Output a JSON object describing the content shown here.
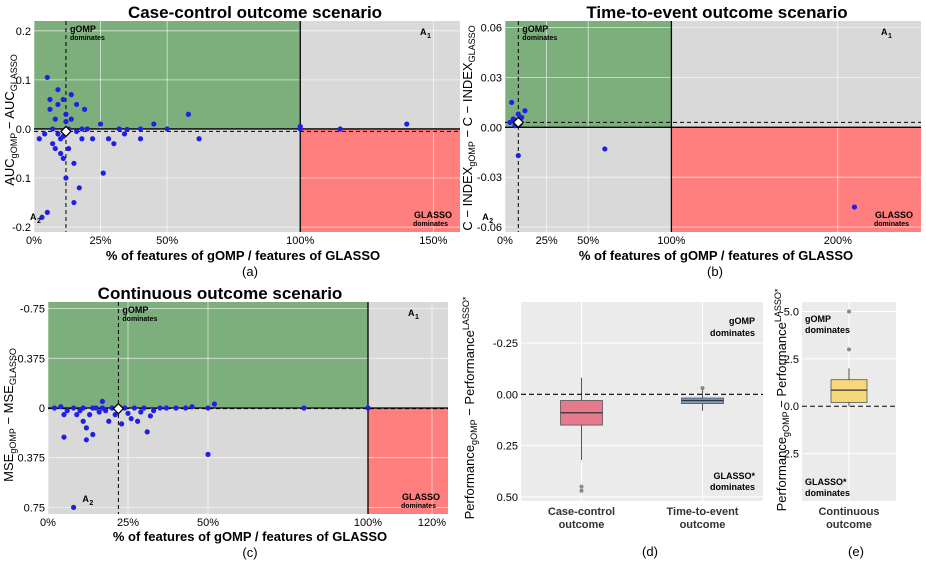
{
  "colors": {
    "green_region": "#7daf7d",
    "red_region": "#ff7f7f",
    "grey_region": "#d9d9d9",
    "point": "#1f1fe6",
    "box_case": "#e57a8c",
    "box_tte": "#7a9bc9",
    "box_cont": "#f4d87a"
  },
  "chart_data": [
    {
      "id": "a",
      "type": "scatter",
      "title": "Case-control outcome scenario",
      "xlabel": "% of features of gOMP / features of GLASSO",
      "ylabel_parts": {
        "lead": "AUC",
        "sub1": "gOMP",
        "mid": " − AUC",
        "sub2": "GLASSO"
      },
      "panel_label": "(a)",
      "xlim": [
        0,
        1.6
      ],
      "ylim": [
        -0.21,
        0.22
      ],
      "y_inverted": false,
      "xticks": [
        {
          "v": 0,
          "label": "0%"
        },
        {
          "v": 0.25,
          "label": "25%"
        },
        {
          "v": 0.5,
          "label": "50%"
        },
        {
          "v": 1.0,
          "label": "100%"
        },
        {
          "v": 1.5,
          "label": "150%"
        }
      ],
      "yticks": [
        {
          "v": 0.2,
          "label": "0.2"
        },
        {
          "v": 0.1,
          "label": "0.1"
        },
        {
          "v": 0.0,
          "label": "0.0"
        },
        {
          "v": -0.1,
          "label": "-0.1"
        },
        {
          "v": -0.2,
          "label": "-0.2"
        }
      ],
      "median_x": 0.12,
      "median_y": -0.005,
      "regions": {
        "a1": "A",
        "a1_sub": "1",
        "a2": "A",
        "a2_sub": "2",
        "gomp": "gOMP",
        "gomp_sub": "dominates",
        "glasso": "GLASSO",
        "glasso_sub": "dominates"
      },
      "points": [
        [
          0.03,
          -0.18
        ],
        [
          0.05,
          -0.17
        ],
        [
          0.05,
          0.105
        ],
        [
          0.06,
          0.06
        ],
        [
          0.06,
          0.04
        ],
        [
          0.07,
          0.0
        ],
        [
          0.07,
          -0.03
        ],
        [
          0.08,
          0.02
        ],
        [
          0.09,
          0.08
        ],
        [
          0.09,
          0.05
        ],
        [
          0.09,
          -0.01
        ],
        [
          0.1,
          -0.02
        ],
        [
          0.1,
          -0.05
        ],
        [
          0.11,
          0.06
        ],
        [
          0.11,
          -0.06
        ],
        [
          0.12,
          0.03
        ],
        [
          0.12,
          -0.1
        ],
        [
          0.13,
          0.0
        ],
        [
          0.13,
          -0.04
        ],
        [
          0.14,
          0.07
        ],
        [
          0.14,
          0.02
        ],
        [
          0.15,
          -0.07
        ],
        [
          0.15,
          -0.15
        ],
        [
          0.16,
          0.05
        ],
        [
          0.17,
          -0.12
        ],
        [
          0.18,
          -0.02
        ],
        [
          0.19,
          0.04
        ],
        [
          0.2,
          0.0
        ],
        [
          0.22,
          -0.02
        ],
        [
          0.25,
          0.01
        ],
        [
          0.26,
          -0.09
        ],
        [
          0.28,
          -0.02
        ],
        [
          0.3,
          -0.03
        ],
        [
          0.32,
          0.0
        ],
        [
          0.34,
          -0.01
        ],
        [
          0.35,
          -0.001
        ],
        [
          0.4,
          -0.02
        ],
        [
          0.4,
          0.0
        ],
        [
          0.45,
          0.01
        ],
        [
          0.5,
          0.0
        ],
        [
          0.58,
          0.03
        ],
        [
          0.62,
          -0.02
        ],
        [
          1.0,
          0.005
        ],
        [
          1.0,
          0.0
        ],
        [
          1.15,
          0.0
        ],
        [
          1.4,
          0.01
        ],
        [
          0.02,
          -0.02
        ],
        [
          0.04,
          -0.01
        ],
        [
          0.08,
          -0.04
        ],
        [
          0.12,
          0.015
        ],
        [
          0.16,
          -0.005
        ],
        [
          0.18,
          0.0
        ],
        [
          0.11,
          -0.015
        ]
      ]
    },
    {
      "id": "b",
      "type": "scatter",
      "title": "Time-to-event outcome scenario",
      "xlabel": "% of features of gOMP / features of GLASSO",
      "ylabel_parts": {
        "lead": "C − INDEX",
        "sub1": "gOMP",
        "mid": " − C − INDEX",
        "sub2": "GLASSO"
      },
      "panel_label": "(b)",
      "xlim": [
        0,
        2.5
      ],
      "ylim": [
        -0.063,
        0.064
      ],
      "y_inverted": false,
      "xticks": [
        {
          "v": 0,
          "label": "0%"
        },
        {
          "v": 0.25,
          "label": "25%"
        },
        {
          "v": 0.5,
          "label": "50%"
        },
        {
          "v": 1.0,
          "label": "100%"
        },
        {
          "v": 2.0,
          "label": "200%"
        }
      ],
      "yticks": [
        {
          "v": 0.06,
          "label": "0.06"
        },
        {
          "v": 0.03,
          "label": "0.03"
        },
        {
          "v": 0.0,
          "label": "0.00"
        },
        {
          "v": -0.03,
          "label": "-0.03"
        },
        {
          "v": -0.06,
          "label": "-0.06"
        }
      ],
      "median_x": 0.08,
      "median_y": 0.003,
      "regions": {
        "a1": "A",
        "a1_sub": "1",
        "a2": "A",
        "a2_sub": "2",
        "gomp": "gOMP",
        "gomp_sub": "dominates",
        "glasso": "GLASSO",
        "glasso_sub": "dominates"
      },
      "points": [
        [
          0.04,
          0.015
        ],
        [
          0.05,
          0.005
        ],
        [
          0.06,
          0.003
        ],
        [
          0.07,
          0.004
        ],
        [
          0.08,
          0.008
        ],
        [
          0.09,
          0.002
        ],
        [
          0.1,
          0.006
        ],
        [
          0.12,
          0.01
        ],
        [
          0.08,
          -0.017
        ],
        [
          0.03,
          0.003
        ],
        [
          0.06,
          0.001
        ],
        [
          0.6,
          -0.013
        ],
        [
          2.1,
          -0.048
        ],
        [
          0.09,
          0.003
        ]
      ]
    },
    {
      "id": "c",
      "type": "scatter",
      "title": "Continuous outcome scenario",
      "xlabel": "% of features of gOMP / features of GLASSO",
      "ylabel_parts": {
        "lead": "MSE",
        "sub1": "gOMP",
        "mid": " − MSE",
        "sub2": "GLASSO"
      },
      "panel_label": "(c)",
      "xlim": [
        0,
        1.25
      ],
      "ylim": [
        -0.8,
        0.8
      ],
      "y_inverted": true,
      "xticks": [
        {
          "v": 0,
          "label": "0%"
        },
        {
          "v": 0.25,
          "label": "25%"
        },
        {
          "v": 0.5,
          "label": "50%"
        },
        {
          "v": 1.0,
          "label": "100%"
        },
        {
          "v": 1.2,
          "label": "120%"
        }
      ],
      "yticks": [
        {
          "v": -0.75,
          "label": "-0.75"
        },
        {
          "v": -0.375,
          "label": "-0.375"
        },
        {
          "v": 0.0,
          "label": "0"
        },
        {
          "v": 0.375,
          "label": "0.375"
        },
        {
          "v": 0.75,
          "label": "0.75"
        }
      ],
      "median_x": 0.22,
      "median_y": 0.005,
      "regions": {
        "a1": "A",
        "a1_sub": "1",
        "a2": "A",
        "a2_sub": "2",
        "gomp": "gOMP",
        "gomp_sub": "dominates",
        "glasso": "GLASSO",
        "glasso_sub": "dominates"
      },
      "points": [
        [
          0.02,
          0.0
        ],
        [
          0.04,
          -0.01
        ],
        [
          0.05,
          0.05
        ],
        [
          0.05,
          0.22
        ],
        [
          0.06,
          0.02
        ],
        [
          0.08,
          0.0
        ],
        [
          0.08,
          0.75
        ],
        [
          0.09,
          0.05
        ],
        [
          0.1,
          0.02
        ],
        [
          0.11,
          0.0
        ],
        [
          0.11,
          0.1
        ],
        [
          0.12,
          0.15
        ],
        [
          0.12,
          0.24
        ],
        [
          0.13,
          0.05
        ],
        [
          0.14,
          0.2
        ],
        [
          0.15,
          0.0
        ],
        [
          0.16,
          0.03
        ],
        [
          0.17,
          -0.05
        ],
        [
          0.18,
          0.02
        ],
        [
          0.19,
          0.1
        ],
        [
          0.2,
          0.0
        ],
        [
          0.21,
          0.05
        ],
        [
          0.23,
          0.12
        ],
        [
          0.24,
          0.0
        ],
        [
          0.25,
          0.04
        ],
        [
          0.26,
          0.08
        ],
        [
          0.27,
          0.0
        ],
        [
          0.28,
          0.1
        ],
        [
          0.29,
          0.03
        ],
        [
          0.3,
          0.0
        ],
        [
          0.31,
          0.18
        ],
        [
          0.32,
          0.06
        ],
        [
          0.33,
          0.02
        ],
        [
          0.35,
          0.0
        ],
        [
          0.37,
          0.0
        ],
        [
          0.4,
          0.0
        ],
        [
          0.43,
          0.0
        ],
        [
          0.45,
          -0.01
        ],
        [
          0.5,
          0.0
        ],
        [
          0.5,
          0.35
        ],
        [
          0.52,
          -0.03
        ],
        [
          0.8,
          0.0
        ],
        [
          1.0,
          0.0
        ],
        [
          0.14,
          0.0
        ],
        [
          0.17,
          0.0
        ]
      ]
    },
    {
      "id": "d",
      "type": "box",
      "ylabel_parts": {
        "lead": "Performance",
        "sub1": "gOMP",
        "mid": " − Performance",
        "sub2": "LASSO*"
      },
      "panel_label": "(d)",
      "ylim": [
        -0.45,
        0.52
      ],
      "y_inverted": true,
      "yticks": [
        {
          "v": -0.25,
          "label": "-0.25"
        },
        {
          "v": 0.0,
          "label": "0.00"
        },
        {
          "v": 0.25,
          "label": "0.25"
        },
        {
          "v": 0.5,
          "label": "0.50"
        }
      ],
      "annot_top": [
        "gOMP",
        "dominates"
      ],
      "annot_bottom": [
        "GLASSO*",
        "dominates"
      ],
      "boxes": [
        {
          "category": [
            "Case-control",
            "outcome"
          ],
          "whisker_low": -0.08,
          "q1": 0.03,
          "median": 0.09,
          "q3": 0.15,
          "whisker_high": 0.32,
          "outliers": [
            0.45,
            0.47
          ]
        },
        {
          "category": [
            "Time-to-event",
            "outcome"
          ],
          "whisker_low": -0.03,
          "q1": 0.018,
          "median": 0.03,
          "q3": 0.045,
          "whisker_high": 0.08,
          "outliers": [
            -0.03
          ]
        }
      ]
    },
    {
      "id": "e",
      "type": "box",
      "ylabel_parts": {
        "lead": "Performance",
        "sub1": "gOMP",
        "mid": " − Performance",
        "sub2": "LASSO*"
      },
      "panel_label": "(e)",
      "ylim": [
        -5.5,
        5.0
      ],
      "y_inverted": true,
      "yticks": [
        {
          "v": -5.0,
          "label": "-5.0"
        },
        {
          "v": -2.5,
          "label": "-2.5"
        },
        {
          "v": 0.0,
          "label": "0.0"
        },
        {
          "v": 2.5,
          "label": "2.5"
        }
      ],
      "annot_top": [
        "gOMP",
        "dominates"
      ],
      "annot_bottom": [
        "GLASSO*",
        "dominates"
      ],
      "boxes": [
        {
          "category": [
            "Continuous",
            "outcome"
          ],
          "whisker_low": -2.0,
          "q1": -1.4,
          "median": -0.85,
          "q3": -0.2,
          "whisker_high": 0.0,
          "outliers": [
            -5.0,
            -3.0
          ]
        }
      ]
    }
  ]
}
